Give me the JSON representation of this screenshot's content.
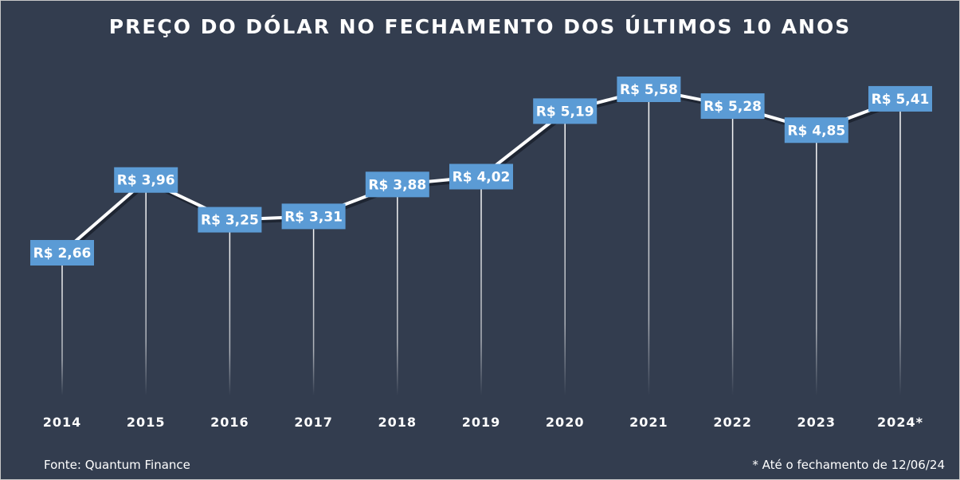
{
  "title": "PREÇO DO DÓLAR NO FECHAMENTO DOS ÚLTIMOS 10 ANOS",
  "source": "Fonte: Quantum Finance",
  "footnote": "* Até o fechamento de 12/06/24",
  "colors": {
    "background": "#333d4f",
    "label_box": "#5b9bd5",
    "line": "#ffffff",
    "text": "#ffffff"
  },
  "chart_data": {
    "type": "line",
    "categories": [
      "2014",
      "2015",
      "2016",
      "2017",
      "2018",
      "2019",
      "2020",
      "2021",
      "2022",
      "2023",
      "2024*"
    ],
    "values": [
      2.66,
      3.96,
      3.25,
      3.31,
      3.88,
      4.02,
      5.19,
      5.58,
      5.28,
      4.85,
      5.41
    ],
    "data_labels": [
      "R$ 2,66",
      "R$ 3,96",
      "R$ 3,25",
      "R$ 3,31",
      "R$ 3,88",
      "R$ 4,02",
      "R$ 5,19",
      "R$ 5,58",
      "R$ 5,28",
      "R$ 4,85",
      "R$ 5,41"
    ],
    "title": "PREÇO DO DÓLAR NO FECHAMENTO DOS ÚLTIMOS 10 ANOS",
    "xlabel": "",
    "ylabel": "",
    "y_axis_visible": false,
    "grid": false,
    "drop_lines": true
  }
}
